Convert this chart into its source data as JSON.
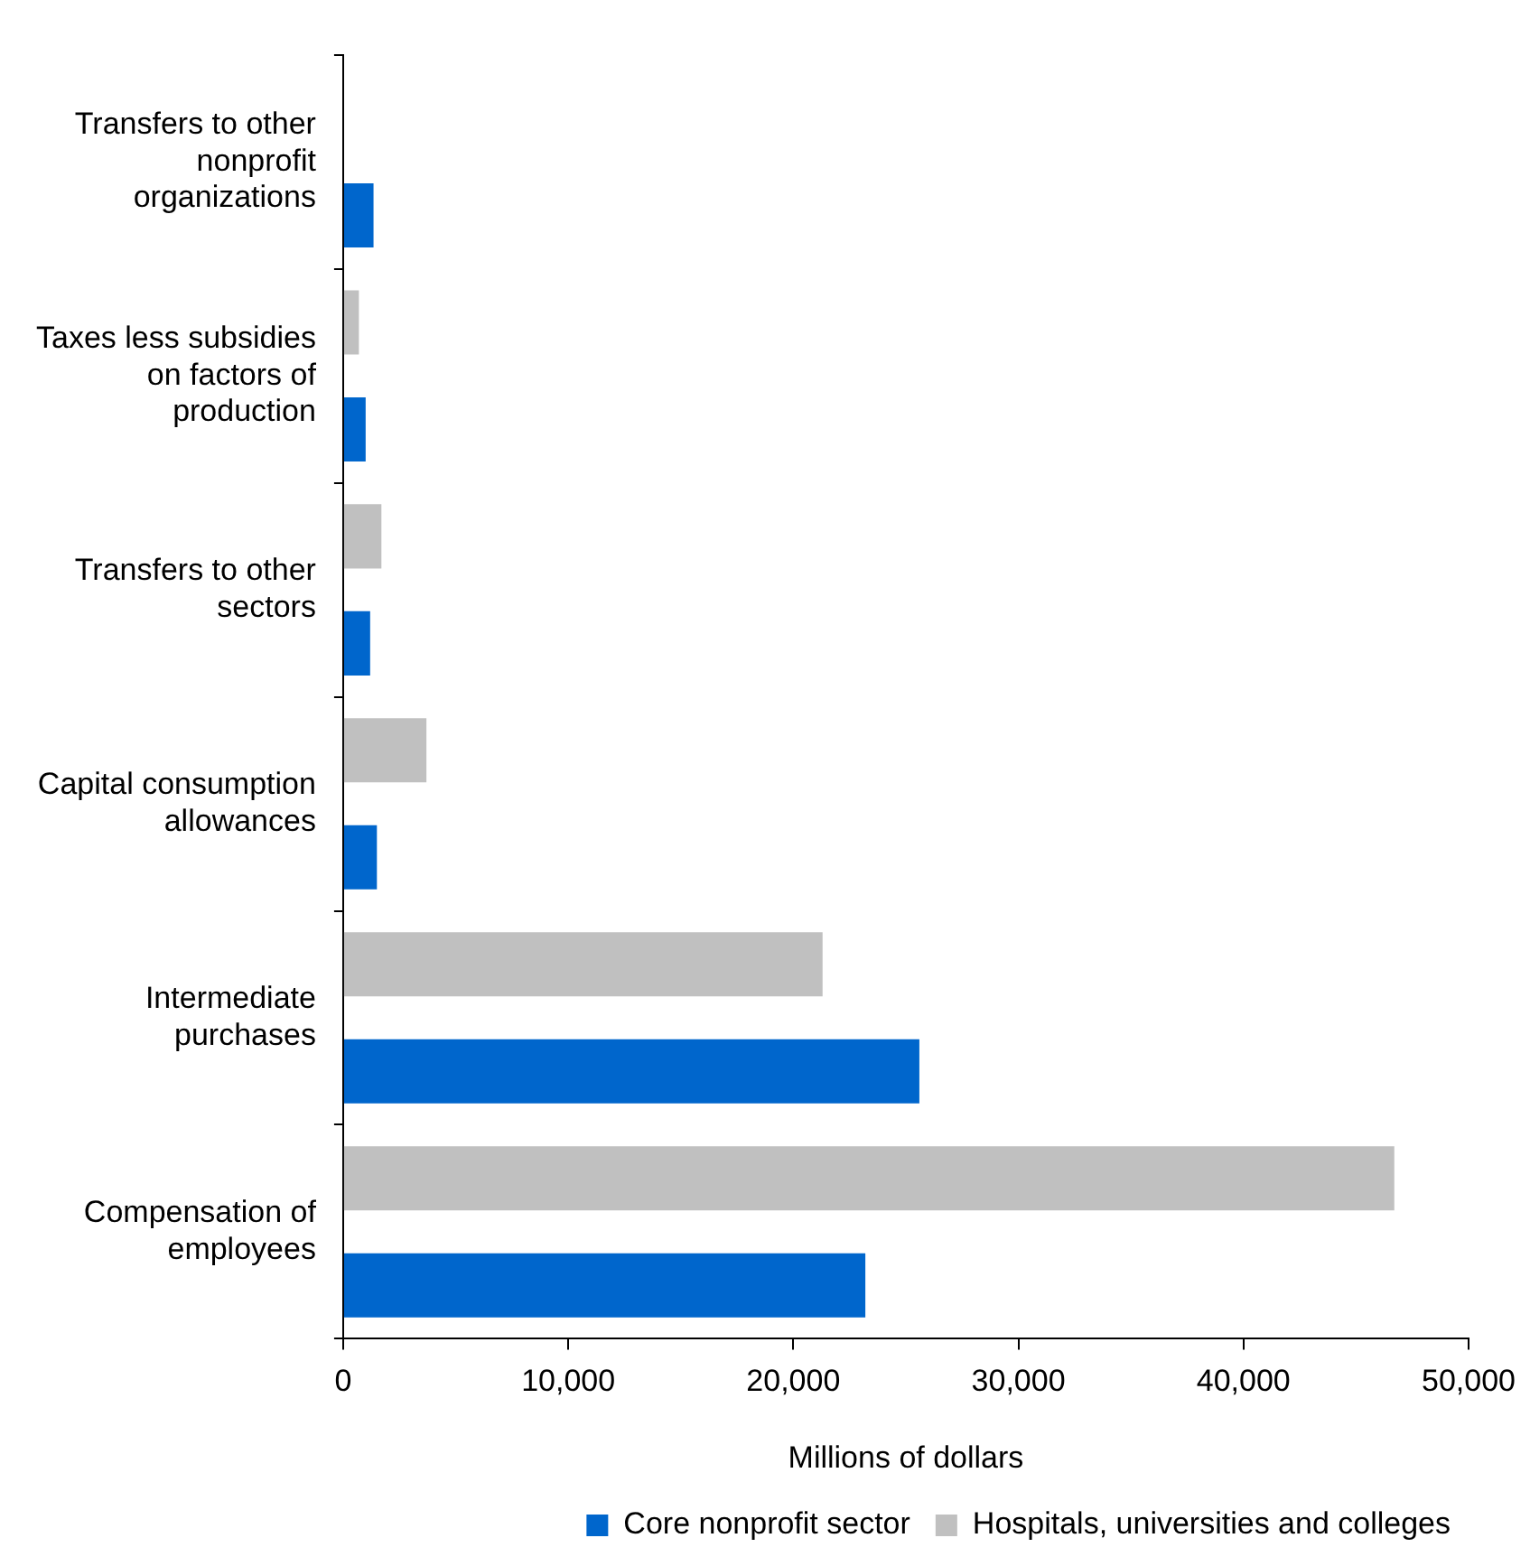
{
  "chart_data": {
    "type": "bar",
    "orientation": "horizontal",
    "xlabel": "Millions of dollars",
    "categories": [
      "Transfers to other nonprofit organizations",
      "Taxes less subsidies on factors of production",
      "Transfers to other sectors",
      "Capital consumption allowances",
      "Intermediate purchases",
      "Compensation of employees"
    ],
    "series": [
      {
        "name": "Core nonprofit sector",
        "color": "#0066cc",
        "values": [
          1350,
          1000,
          1200,
          1500,
          25600,
          23200
        ]
      },
      {
        "name": "Hospitals, universities and colleges",
        "color": "#c0c0c0",
        "values": [
          null,
          700,
          1700,
          3700,
          21300,
          46700
        ]
      }
    ],
    "xlim": [
      0,
      50000
    ],
    "xticks": [
      {
        "value": 0,
        "label": "0"
      },
      {
        "value": 10000,
        "label": "10,000"
      },
      {
        "value": 20000,
        "label": "20,000"
      },
      {
        "value": 30000,
        "label": "30,000"
      },
      {
        "value": 40000,
        "label": "40,000"
      },
      {
        "value": 50000,
        "label": "50,000"
      }
    ],
    "grid": false,
    "legend": "bottom"
  }
}
